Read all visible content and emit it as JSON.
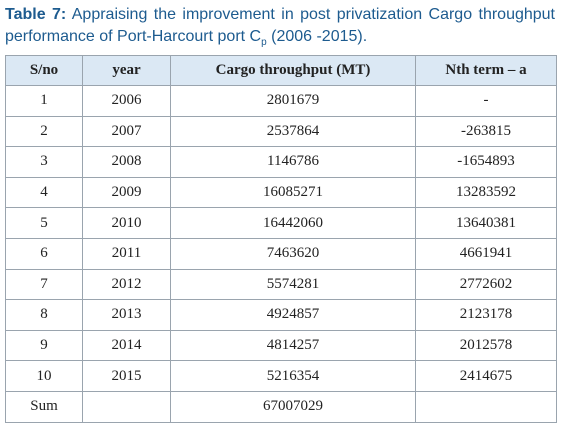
{
  "caption": {
    "label": "Table 7:",
    "text": "Appraising the improvement in post privatization Cargo throughput performance of Port-Harcourt port C",
    "subscript": "p",
    "tail": "(2006 -2015)."
  },
  "table": {
    "header": [
      "S/no",
      "year",
      "Cargo throughput (MT)",
      "Nth term – a"
    ],
    "rows": [
      [
        "1",
        "2006",
        "2801679",
        "-"
      ],
      [
        "2",
        "2007",
        "2537864",
        "-263815"
      ],
      [
        "3",
        "2008",
        "1146786",
        "-1654893"
      ],
      [
        "4",
        "2009",
        "16085271",
        "13283592"
      ],
      [
        "5",
        "2010",
        "16442060",
        "13640381"
      ],
      [
        "6",
        "2011",
        "7463620",
        "4661941"
      ],
      [
        "7",
        "2012",
        "5574281",
        "2772602"
      ],
      [
        "8",
        "2013",
        "4924857",
        "2123178"
      ],
      [
        "9",
        "2014",
        "4814257",
        "2012578"
      ],
      [
        "10",
        "2015",
        "5216354",
        "2414675"
      ]
    ],
    "sum": {
      "label": "Sum",
      "total": "67007029"
    }
  }
}
